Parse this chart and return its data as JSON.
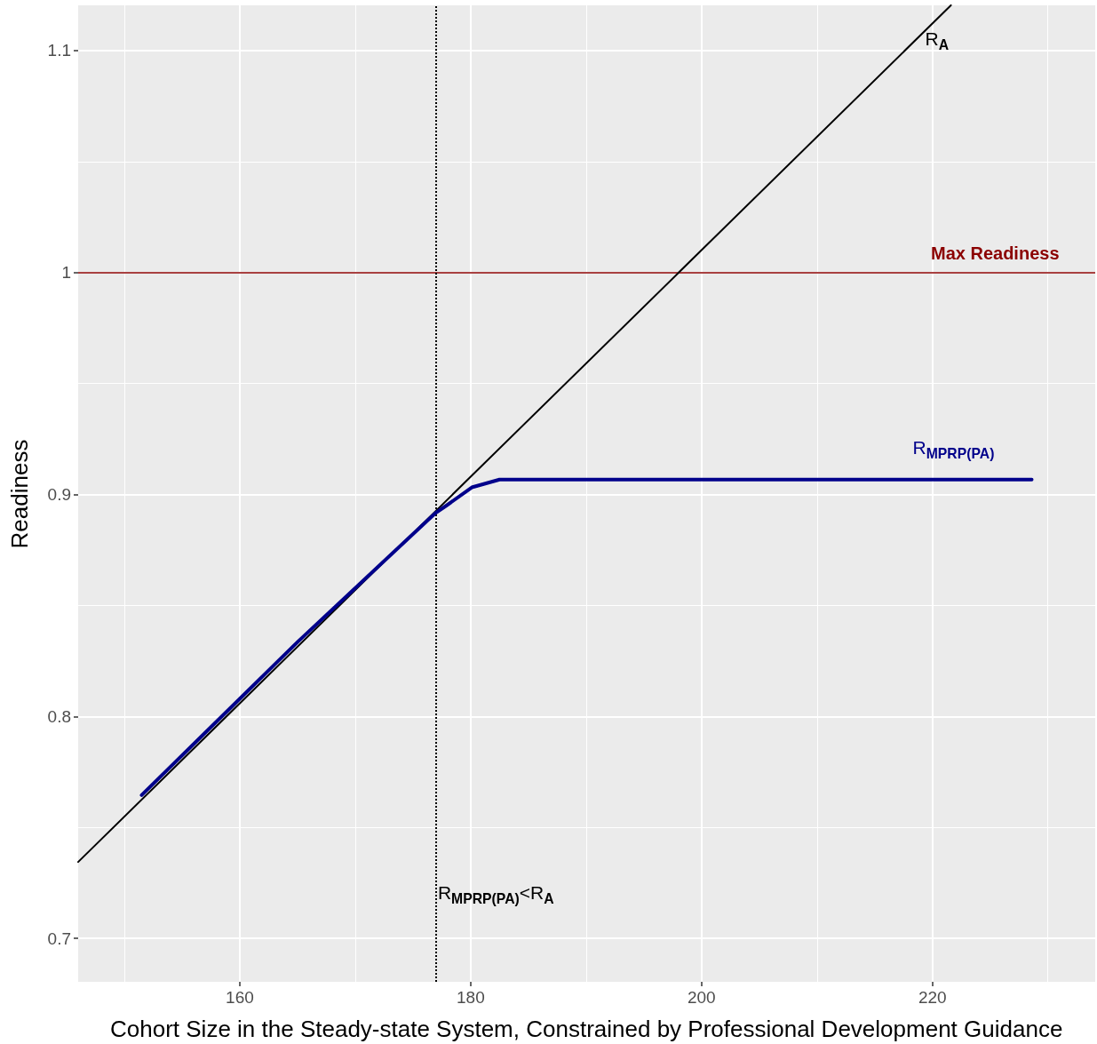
{
  "chart_data": {
    "type": "line",
    "xlabel": "Cohort Size in the Steady-state System, Constrained by Professional Development Guidance",
    "ylabel": "Readiness",
    "xlim": [
      146,
      234.1
    ],
    "ylim": [
      0.6804,
      1.1204
    ],
    "xticks": [
      {
        "value": 150,
        "label": null
      },
      160,
      {
        "value": 170,
        "label": null
      },
      180,
      {
        "value": 190,
        "label": null
      },
      200,
      {
        "value": 210,
        "label": null
      },
      220,
      {
        "value": 230,
        "label": null
      }
    ],
    "yticks": [
      0.7,
      {
        "value": 0.75,
        "label": null
      },
      0.8,
      {
        "value": 0.85,
        "label": null
      },
      0.9,
      {
        "value": 0.95,
        "label": null
      },
      1.0,
      {
        "value": 1.05,
        "label": null
      },
      1.1
    ],
    "grid": true,
    "marker": "none",
    "line_style": "solid",
    "series": [
      {
        "name": "R$_{A}$",
        "color": "#000000",
        "x": [
          146,
          221.6
        ],
        "values": [
          0.7344,
          1.1204
        ]
      },
      {
        "name": "R$_{MPRP(PA)}$",
        "color": "#00008b",
        "x": [
          151.5,
          165,
          176.9,
          177.9,
          180.1,
          182.5,
          228.6
        ],
        "values": [
          0.7645,
          0.8335,
          0.8914,
          0.895,
          0.9032,
          0.9067,
          0.9067
        ]
      }
    ],
    "ref_lines": [
      {
        "axis": "y",
        "value": 1.0,
        "label": "Max Readiness",
        "color": "#8b0000",
        "line_style": "solid"
      },
      {
        "axis": "x",
        "value": 177,
        "label": "R$_{MPRP(PA)}$<R$_{A}$",
        "color": "#000000",
        "line_style": "dotted"
      }
    ]
  }
}
